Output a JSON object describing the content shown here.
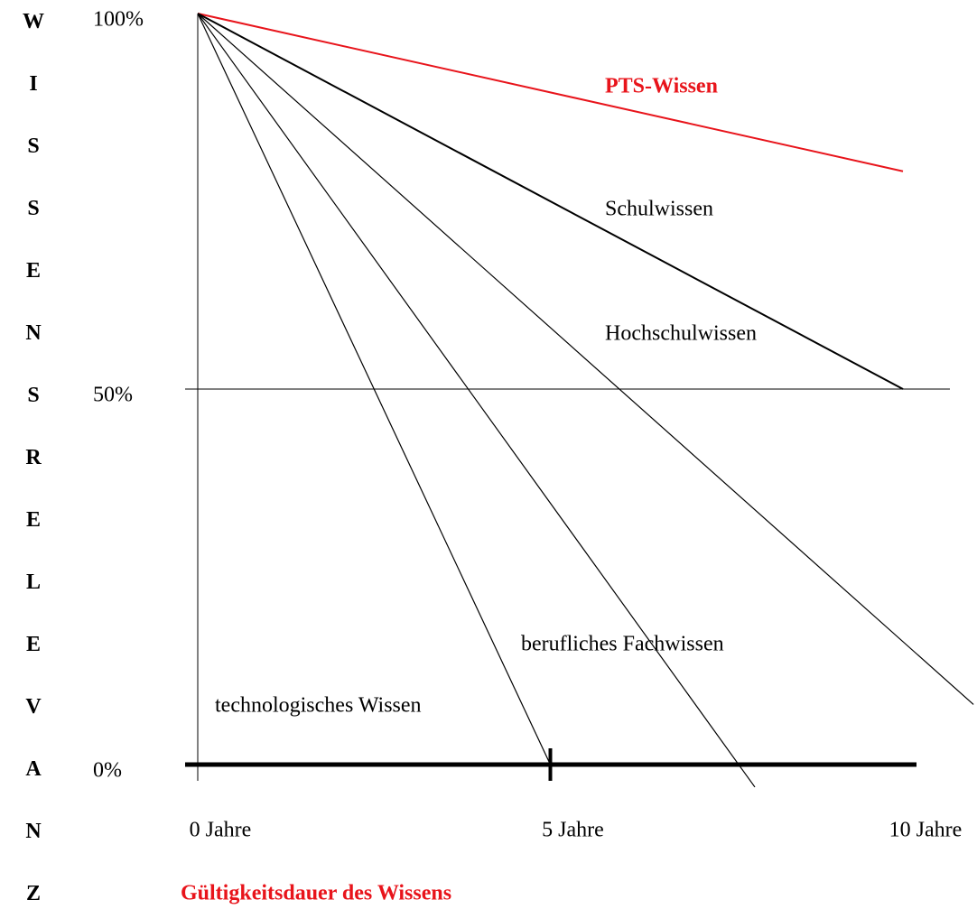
{
  "chart_data": {
    "type": "line",
    "ylabel": "WISSENSRELEVANZ",
    "xlabel": "Gültigkeitsdauer des Wissens",
    "xlim": [
      0,
      10
    ],
    "ylim": [
      0,
      100
    ],
    "xticks": [
      {
        "value": 0,
        "label": "0 Jahre"
      },
      {
        "value": 5,
        "label": "5 Jahre"
      },
      {
        "value": 10,
        "label": "10 Jahre"
      }
    ],
    "yticks": [
      {
        "value": 0,
        "label": "0%"
      },
      {
        "value": 50,
        "label": "50%"
      },
      {
        "value": 100,
        "label": "100%"
      }
    ],
    "series": [
      {
        "name": "PTS-Wissen",
        "color": "#e8141b",
        "x": [
          0,
          10
        ],
        "values": [
          100,
          79
        ]
      },
      {
        "name": "Schulwissen",
        "color": "#000000",
        "x": [
          0,
          10
        ],
        "values": [
          100,
          50
        ]
      },
      {
        "name": "Hochschulwissen",
        "color": "#000000",
        "x": [
          0,
          11
        ],
        "values": [
          100,
          8
        ]
      },
      {
        "name": "berufliches Fachwissen",
        "color": "#000000",
        "x": [
          0,
          7.9
        ],
        "values": [
          100,
          -3
        ]
      },
      {
        "name": "technologisches Wissen",
        "color": "#000000",
        "x": [
          0,
          5
        ],
        "values": [
          100,
          0
        ]
      }
    ]
  }
}
